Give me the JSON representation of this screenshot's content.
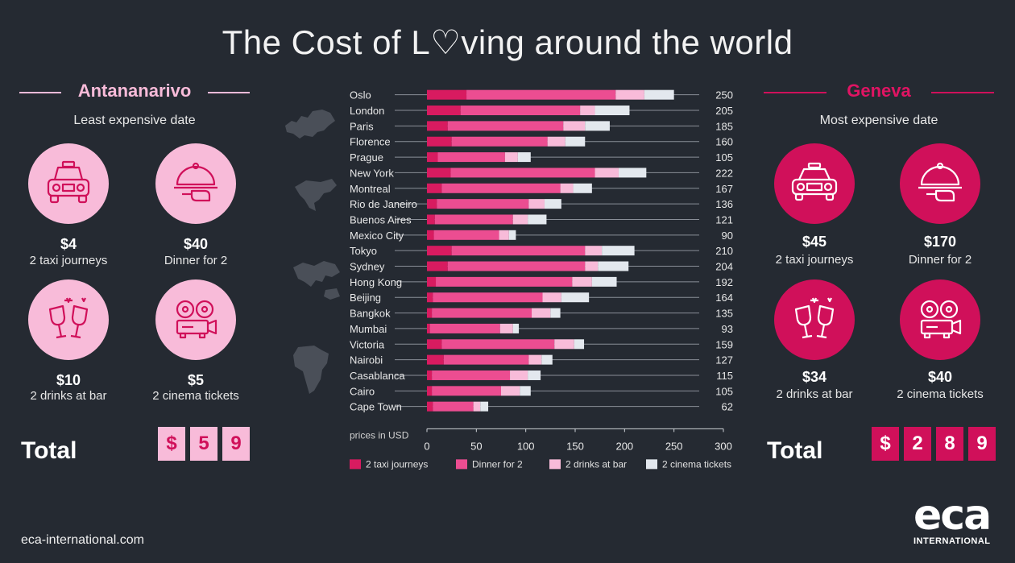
{
  "title": {
    "before": "The Cost of L",
    "heart": "♡",
    "after": "ving around the world"
  },
  "left": {
    "city": "Antananarivo",
    "subtitle": "Least expensive date",
    "items": [
      {
        "amount": "$4",
        "label": "2 taxi journeys",
        "icon": "taxi-icon"
      },
      {
        "amount": "$40",
        "label": "Dinner for 2",
        "icon": "cloche-icon"
      },
      {
        "amount": "$10",
        "label": "2 drinks at bar",
        "icon": "wine-glasses-icon"
      },
      {
        "amount": "$5",
        "label": "2 cinema tickets",
        "icon": "film-projector-icon"
      }
    ],
    "total_label": "Total",
    "total_digits": [
      "$",
      "5",
      "9"
    ]
  },
  "right": {
    "city": "Geneva",
    "subtitle": "Most expensive date",
    "items": [
      {
        "amount": "$45",
        "label": "2 taxi journeys",
        "icon": "taxi-icon"
      },
      {
        "amount": "$170",
        "label": "Dinner for 2",
        "icon": "cloche-icon"
      },
      {
        "amount": "$34",
        "label": "2 drinks at bar",
        "icon": "wine-glasses-icon"
      },
      {
        "amount": "$40",
        "label": "2 cinema tickets",
        "icon": "film-projector-icon"
      }
    ],
    "total_label": "Total",
    "total_digits": [
      "$",
      "2",
      "8",
      "9"
    ]
  },
  "colors": {
    "background": "#252a32",
    "taxi": "#d81b60",
    "dinner": "#ec4d91",
    "drinks": "#f8bbd9",
    "cinema": "#e3e8ee",
    "left_accent": "#f8bbd9",
    "right_accent": "#d0105a"
  },
  "chart_data": {
    "type": "bar",
    "orientation": "horizontal",
    "stacked": true,
    "categories": [
      "Oslo",
      "London",
      "Paris",
      "Florence",
      "Prague",
      "New York",
      "Montreal",
      "Rio de Janeiro",
      "Buenos Aires",
      "Mexico City",
      "Tokyo",
      "Sydney",
      "Hong Kong",
      "Beijing",
      "Bangkok",
      "Mumbai",
      "Victoria",
      "Nairobi",
      "Casablanca",
      "Cairo",
      "Cape Town"
    ],
    "totals": [
      250,
      205,
      185,
      160,
      105,
      222,
      167,
      136,
      121,
      90,
      210,
      204,
      192,
      164,
      135,
      93,
      159,
      127,
      115,
      105,
      62
    ],
    "series": [
      {
        "name": "2 taxi journeys",
        "values": [
          40,
          34,
          21,
          25,
          11,
          24,
          15,
          10,
          8,
          7,
          25,
          21,
          9,
          6,
          5,
          3,
          15,
          17,
          5,
          5,
          6
        ]
      },
      {
        "name": "Dinner for 2",
        "values": [
          151,
          121,
          117,
          97,
          68,
          146,
          120,
          93,
          79,
          66,
          135,
          139,
          138,
          111,
          101,
          71,
          114,
          86,
          79,
          70,
          41
        ]
      },
      {
        "name": "2 drinks at bar",
        "values": [
          29,
          15,
          22,
          18,
          13,
          24,
          13,
          16,
          15,
          10,
          17,
          13,
          20,
          19,
          19,
          13,
          20,
          13,
          18,
          19,
          7
        ]
      },
      {
        "name": "2 cinema tickets",
        "values": [
          30,
          35,
          25,
          20,
          13,
          28,
          19,
          17,
          19,
          7,
          33,
          31,
          25,
          28,
          10,
          6,
          10,
          11,
          13,
          11,
          8
        ]
      }
    ],
    "xlabel": "prices in USD",
    "xticks": [
      0,
      50,
      100,
      150,
      200,
      250,
      300
    ],
    "xlim": [
      0,
      300
    ],
    "legend_position": "bottom",
    "region_groups": [
      {
        "region": "europe",
        "start": 0,
        "end": 4
      },
      {
        "region": "americas",
        "start": 5,
        "end": 9
      },
      {
        "region": "asia-pacific",
        "start": 10,
        "end": 15
      },
      {
        "region": "africa",
        "start": 16,
        "end": 20
      }
    ]
  },
  "footer": {
    "url": "eca-international.com"
  },
  "logo": {
    "big": "eca",
    "small": "INTERNATIONAL"
  }
}
